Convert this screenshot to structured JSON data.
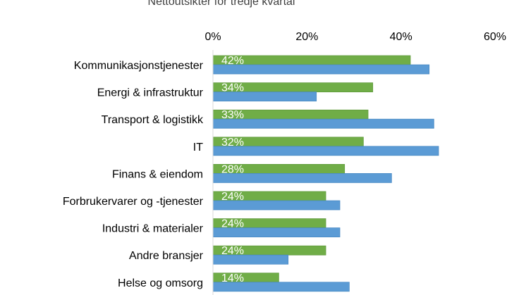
{
  "chart_data": {
    "type": "bar",
    "orientation": "horizontal",
    "title": "Nettoutsikter for tredje kvartal",
    "categories": [
      "Kommunikasjonstjenester",
      "Energi & infrastruktur",
      "Transport & logistikk",
      "IT",
      "Finans & eiendom",
      "Forbrukervarer og -tjenester",
      "Industri & materialer",
      "Andre bransjer",
      "Helse og omsorg"
    ],
    "series": [
      {
        "color": "#70ad47",
        "values": [
          42,
          34,
          33,
          32,
          28,
          24,
          24,
          24,
          14
        ],
        "data_labels": [
          "42%",
          "34%",
          "33%",
          "32%",
          "28%",
          "24%",
          "24%",
          "24%",
          "14%"
        ]
      },
      {
        "color": "#5b9bd5",
        "values": [
          46,
          22,
          47,
          48,
          38,
          27,
          27,
          16,
          29
        ]
      }
    ],
    "xlim": [
      0,
      60
    ],
    "x_ticks": [
      "0%",
      "20%",
      "40%",
      "60%"
    ],
    "x_tick_values": [
      0,
      20,
      40,
      60
    ],
    "x_axis_position": "top",
    "grid": false,
    "legend": "none"
  }
}
